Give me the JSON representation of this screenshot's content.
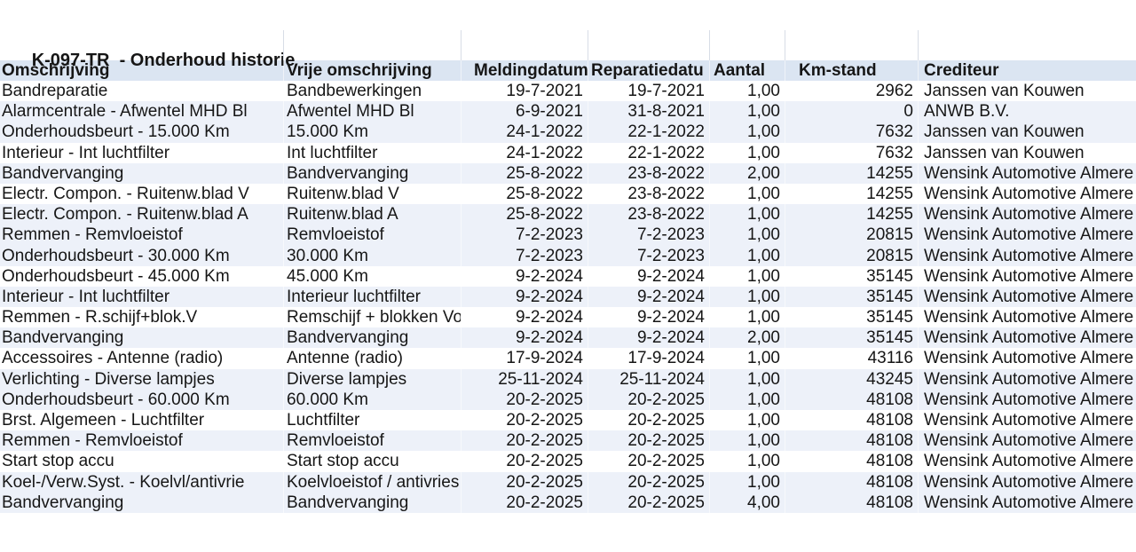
{
  "title": "K-097-TR  - Onderhoud historie",
  "colors": {
    "header_bg": "#dbe5f2",
    "band_bg": "#edf1f9",
    "grid_line": "#d8dde6",
    "text": "#161616"
  },
  "table": {
    "columns": [
      {
        "id": "omschrijving",
        "label": "Omschrijving",
        "align": "left"
      },
      {
        "id": "vrije_omschrijving",
        "label": "Vrije omschrijving",
        "align": "left"
      },
      {
        "id": "meldingdatum",
        "label": "Meldingdatum",
        "align": "right"
      },
      {
        "id": "reparatiedatum",
        "label": "Reparatiedatu",
        "align": "right"
      },
      {
        "id": "aantal",
        "label": "Aantal",
        "align": "right"
      },
      {
        "id": "km_stand",
        "label": "Km-stand",
        "align": "right"
      },
      {
        "id": "crediteur",
        "label": "Crediteur",
        "align": "left"
      }
    ],
    "rows": [
      {
        "omschrijving": "Bandreparatie",
        "vrije_omschrijving": "Bandbewerkingen",
        "meldingdatum": "19-7-2021",
        "reparatiedatum": "19-7-2021",
        "aantal": "1,00",
        "km_stand": "2962",
        "crediteur": "Janssen van Kouwen",
        "banded": false
      },
      {
        "omschrijving": "Alarmcentrale - Afwentel MHD Bl",
        "vrije_omschrijving": "Afwentel MHD Bl",
        "meldingdatum": "6-9-2021",
        "reparatiedatum": "31-8-2021",
        "aantal": "1,00",
        "km_stand": "0",
        "crediteur": "ANWB B.V.",
        "banded": true
      },
      {
        "omschrijving": "Onderhoudsbeurt - 15.000 Km",
        "vrije_omschrijving": "15.000 Km",
        "meldingdatum": "24-1-2022",
        "reparatiedatum": "22-1-2022",
        "aantal": "1,00",
        "km_stand": "7632",
        "crediteur": "Janssen van Kouwen",
        "banded": true
      },
      {
        "omschrijving": "Interieur - Int luchtfilter",
        "vrije_omschrijving": "Int luchtfilter",
        "meldingdatum": "24-1-2022",
        "reparatiedatum": "22-1-2022",
        "aantal": "1,00",
        "km_stand": "7632",
        "crediteur": "Janssen van Kouwen",
        "banded": false
      },
      {
        "omschrijving": "Bandvervanging",
        "vrije_omschrijving": "Bandvervanging",
        "meldingdatum": "25-8-2022",
        "reparatiedatum": "23-8-2022",
        "aantal": "2,00",
        "km_stand": "14255",
        "crediteur": "Wensink Automotive Almere",
        "banded": true
      },
      {
        "omschrijving": "Electr. Compon. - Ruitenw.blad V",
        "vrije_omschrijving": "Ruitenw.blad V",
        "meldingdatum": "25-8-2022",
        "reparatiedatum": "23-8-2022",
        "aantal": "1,00",
        "km_stand": "14255",
        "crediteur": "Wensink Automotive Almere",
        "banded": false
      },
      {
        "omschrijving": "Electr. Compon. - Ruitenw.blad A",
        "vrije_omschrijving": "Ruitenw.blad A",
        "meldingdatum": "25-8-2022",
        "reparatiedatum": "23-8-2022",
        "aantal": "1,00",
        "km_stand": "14255",
        "crediteur": "Wensink Automotive Almere",
        "banded": true
      },
      {
        "omschrijving": "Remmen - Remvloeistof",
        "vrije_omschrijving": "Remvloeistof",
        "meldingdatum": "7-2-2023",
        "reparatiedatum": "7-2-2023",
        "aantal": "1,00",
        "km_stand": "20815",
        "crediteur": "Wensink Automotive Almere",
        "banded": true
      },
      {
        "omschrijving": "Onderhoudsbeurt - 30.000 Km",
        "vrije_omschrijving": "30.000 Km",
        "meldingdatum": "7-2-2023",
        "reparatiedatum": "7-2-2023",
        "aantal": "1,00",
        "km_stand": "20815",
        "crediteur": "Wensink Automotive Almere",
        "banded": true
      },
      {
        "omschrijving": "Onderhoudsbeurt - 45.000 Km",
        "vrije_omschrijving": "45.000 Km",
        "meldingdatum": "9-2-2024",
        "reparatiedatum": "9-2-2024",
        "aantal": "1,00",
        "km_stand": "35145",
        "crediteur": "Wensink Automotive Almere",
        "banded": false
      },
      {
        "omschrijving": "Interieur - Int luchtfilter",
        "vrije_omschrijving": "Interieur luchtfilter",
        "meldingdatum": "9-2-2024",
        "reparatiedatum": "9-2-2024",
        "aantal": "1,00",
        "km_stand": "35145",
        "crediteur": "Wensink Automotive Almere",
        "banded": true
      },
      {
        "omschrijving": "Remmen - R.schijf+blok.V",
        "vrije_omschrijving": "Remschijf + blokken Vo",
        "meldingdatum": "9-2-2024",
        "reparatiedatum": "9-2-2024",
        "aantal": "1,00",
        "km_stand": "35145",
        "crediteur": "Wensink Automotive Almere",
        "banded": false
      },
      {
        "omschrijving": "Bandvervanging",
        "vrije_omschrijving": "Bandvervanging",
        "meldingdatum": "9-2-2024",
        "reparatiedatum": "9-2-2024",
        "aantal": "2,00",
        "km_stand": "35145",
        "crediteur": "Wensink Automotive Almere",
        "banded": true
      },
      {
        "omschrijving": "Accessoires - Antenne (radio)",
        "vrije_omschrijving": "Antenne (radio)",
        "meldingdatum": "17-9-2024",
        "reparatiedatum": "17-9-2024",
        "aantal": "1,00",
        "km_stand": "43116",
        "crediteur": "Wensink Automotive Almere",
        "banded": false
      },
      {
        "omschrijving": "Verlichting - Diverse lampjes",
        "vrije_omschrijving": "Diverse lampjes",
        "meldingdatum": "25-11-2024",
        "reparatiedatum": "25-11-2024",
        "aantal": "1,00",
        "km_stand": "43245",
        "crediteur": "Wensink Automotive Almere",
        "banded": true
      },
      {
        "omschrijving": "Onderhoudsbeurt - 60.000 Km",
        "vrije_omschrijving": "60.000 Km",
        "meldingdatum": "20-2-2025",
        "reparatiedatum": "20-2-2025",
        "aantal": "1,00",
        "km_stand": "48108",
        "crediteur": "Wensink Automotive Almere",
        "banded": true
      },
      {
        "omschrijving": "Brst. Algemeen - Luchtfilter",
        "vrije_omschrijving": "Luchtfilter",
        "meldingdatum": "20-2-2025",
        "reparatiedatum": "20-2-2025",
        "aantal": "1,00",
        "km_stand": "48108",
        "crediteur": "Wensink Automotive Almere",
        "banded": false
      },
      {
        "omschrijving": "Remmen - Remvloeistof",
        "vrije_omschrijving": "Remvloeistof",
        "meldingdatum": "20-2-2025",
        "reparatiedatum": "20-2-2025",
        "aantal": "1,00",
        "km_stand": "48108",
        "crediteur": "Wensink Automotive Almere",
        "banded": true
      },
      {
        "omschrijving": "Start stop accu",
        "vrije_omschrijving": "Start stop accu",
        "meldingdatum": "20-2-2025",
        "reparatiedatum": "20-2-2025",
        "aantal": "1,00",
        "km_stand": "48108",
        "crediteur": "Wensink Automotive Almere",
        "banded": false
      },
      {
        "omschrijving": "Koel-/Verw.Syst. - Koelvl/antivrie",
        "vrije_omschrijving": "Koelvloeistof / antivries",
        "meldingdatum": "20-2-2025",
        "reparatiedatum": "20-2-2025",
        "aantal": "1,00",
        "km_stand": "48108",
        "crediteur": "Wensink Automotive Almere",
        "banded": true
      },
      {
        "omschrijving": "Bandvervanging",
        "vrije_omschrijving": "Bandvervanging",
        "meldingdatum": "20-2-2025",
        "reparatiedatum": "20-2-2025",
        "aantal": "4,00",
        "km_stand": "48108",
        "crediteur": "Wensink Automotive Almere",
        "banded": true
      }
    ]
  }
}
